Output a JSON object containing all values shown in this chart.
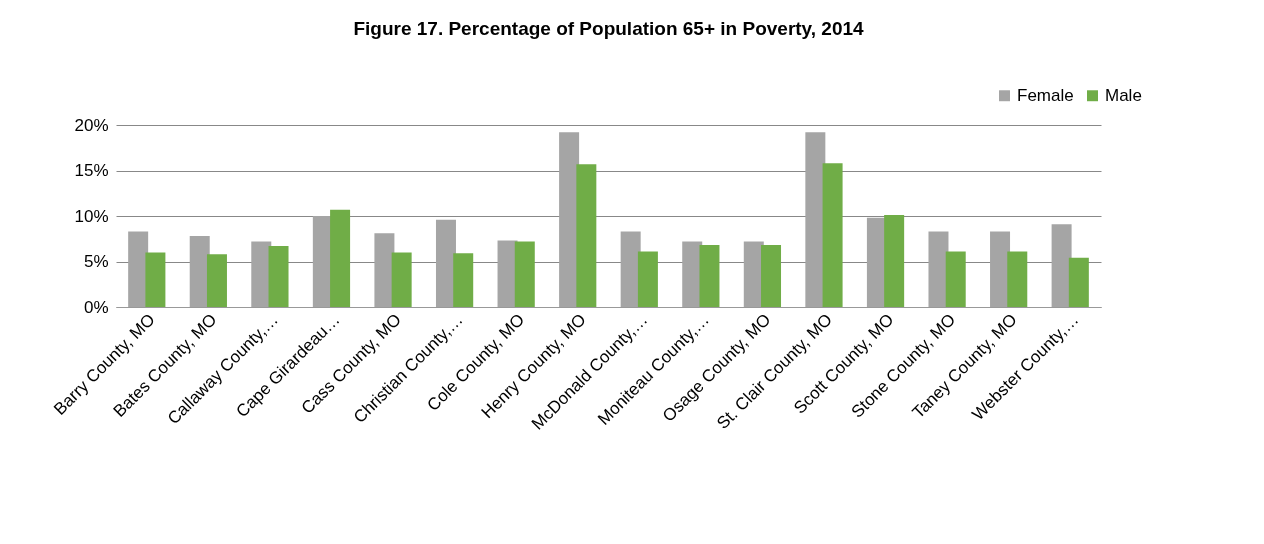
{
  "chart_data": {
    "type": "bar",
    "title": "Figure 17. Percentage of Population 65+ in Poverty, 2014",
    "categories": [
      "Barry County, MO",
      "Bates County, MO",
      "Callaway County,…",
      "Cape Girardeau…",
      "Cass County, MO",
      "Christian County,…",
      "Cole County, MO",
      "Henry County, MO",
      "McDonald County,…",
      "Moniteau County,…",
      "Osage County, MO",
      "St. Clair County, MO",
      "Scott County, MO",
      "Stone County, MO",
      "Taney County, MO",
      "Webster County,…"
    ],
    "series": [
      {
        "name": "Female",
        "color": "#a5a5a5",
        "values": [
          8.3,
          7.8,
          7.2,
          10.0,
          8.1,
          9.6,
          7.3,
          19.2,
          8.3,
          7.2,
          7.2,
          19.2,
          9.8,
          8.3,
          8.3,
          9.1
        ]
      },
      {
        "name": "Male",
        "color": "#70ad47",
        "values": [
          6.0,
          5.8,
          6.7,
          10.7,
          6.0,
          5.9,
          7.2,
          15.7,
          6.1,
          6.8,
          6.8,
          15.8,
          10.1,
          6.1,
          6.1,
          5.4
        ]
      }
    ],
    "ylim": [
      0,
      20
    ],
    "yticks": [
      {
        "value": 0,
        "label": "0%"
      },
      {
        "value": 5,
        "label": "5%"
      },
      {
        "value": 10,
        "label": "10%"
      },
      {
        "value": 15,
        "label": "15%"
      },
      {
        "value": 20,
        "label": "20%"
      }
    ],
    "grid": "y",
    "legend": "top right"
  }
}
